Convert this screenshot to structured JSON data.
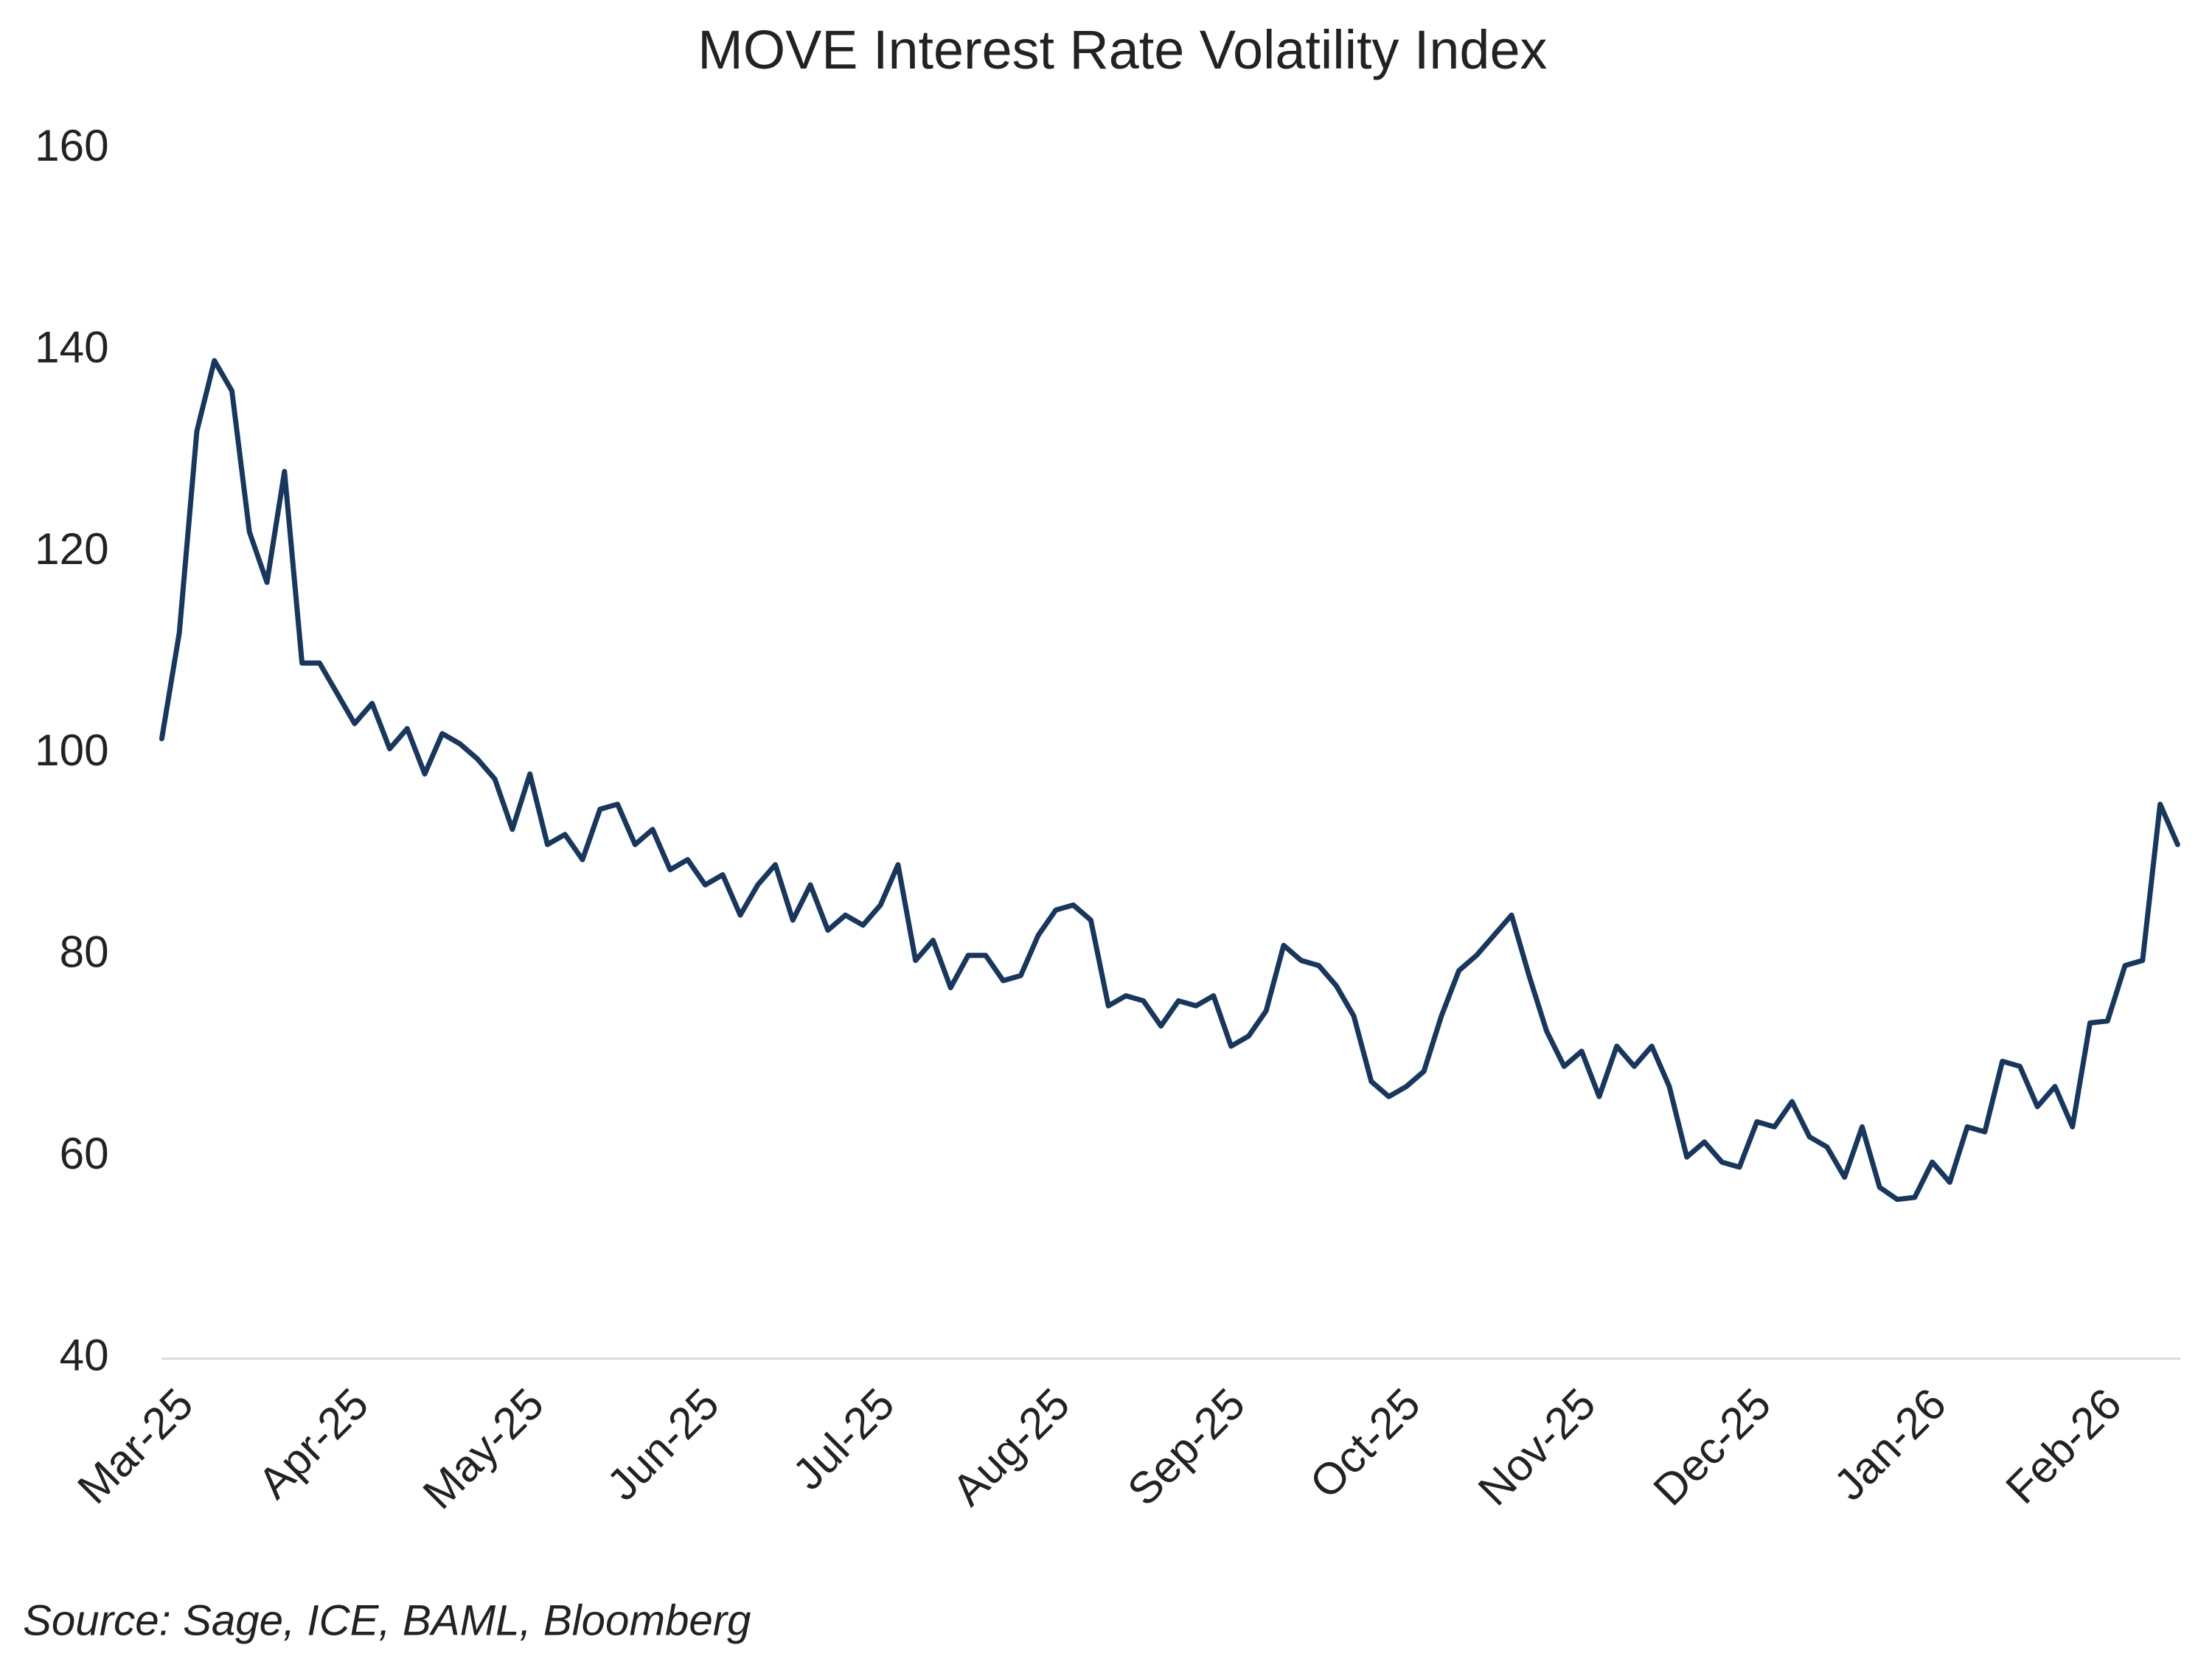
{
  "chart_data": {
    "type": "line",
    "title": "MOVE Interest Rate Volatility Index",
    "source": "Source: Sage, ICE, BAML, Bloomberg",
    "color": "#17375e",
    "categories": [
      "Mar-25",
      null,
      null,
      null,
      null,
      null,
      null,
      null,
      null,
      null,
      "Apr-25",
      null,
      null,
      null,
      null,
      null,
      null,
      null,
      null,
      null,
      "May-25",
      null,
      null,
      null,
      null,
      null,
      null,
      null,
      null,
      null,
      "Jun-25",
      null,
      null,
      null,
      null,
      null,
      null,
      null,
      null,
      null,
      "Jul-25",
      null,
      null,
      null,
      null,
      null,
      null,
      null,
      null,
      null,
      "Aug-25",
      null,
      null,
      null,
      null,
      null,
      null,
      null,
      null,
      null,
      "Sep-25",
      null,
      null,
      null,
      null,
      null,
      null,
      null,
      null,
      null,
      "Oct-25",
      null,
      null,
      null,
      null,
      null,
      null,
      null,
      null,
      null,
      "Nov-25",
      null,
      null,
      null,
      null,
      null,
      null,
      null,
      null,
      null,
      "Dec-25",
      null,
      null,
      null,
      null,
      null,
      null,
      null,
      null,
      null,
      "Jan-26",
      null,
      null,
      null,
      null,
      null,
      null,
      null,
      null,
      null,
      "Feb-26",
      null,
      null,
      null,
      null,
      null
    ],
    "values": [
      101.5,
      112,
      132,
      139,
      136,
      122,
      117,
      128,
      109,
      109,
      106,
      103,
      105,
      100.5,
      102.5,
      98,
      102,
      101,
      99.5,
      97.5,
      92.5,
      98,
      91,
      92,
      89.5,
      94.5,
      95,
      91,
      92.5,
      88.5,
      89.5,
      87,
      88,
      84,
      87,
      89,
      83.5,
      87,
      82.5,
      84,
      83,
      85,
      89,
      79.5,
      81.5,
      76.8,
      80,
      80,
      77.5,
      78,
      82,
      84.5,
      85,
      83.5,
      75,
      76,
      75.5,
      73,
      75.5,
      75,
      76,
      71,
      72,
      74.5,
      81,
      79.5,
      79,
      77,
      74,
      67.5,
      66,
      67,
      68.5,
      74,
      78.5,
      80,
      82,
      84,
      78,
      72.5,
      69,
      70.5,
      66,
      71,
      69,
      71,
      67,
      60,
      61.5,
      59.5,
      59,
      63.5,
      63,
      65.5,
      62,
      61,
      58,
      63,
      57,
      55.8,
      56,
      59.5,
      57.5,
      63,
      62.5,
      69.5,
      69,
      65,
      67,
      63,
      73.3,
      73.5,
      79,
      79.5,
      95,
      91
    ],
    "ylim": [
      40,
      160
    ],
    "yticks": [
      40,
      60,
      80,
      100,
      120,
      140,
      160
    ],
    "grid": false
  }
}
